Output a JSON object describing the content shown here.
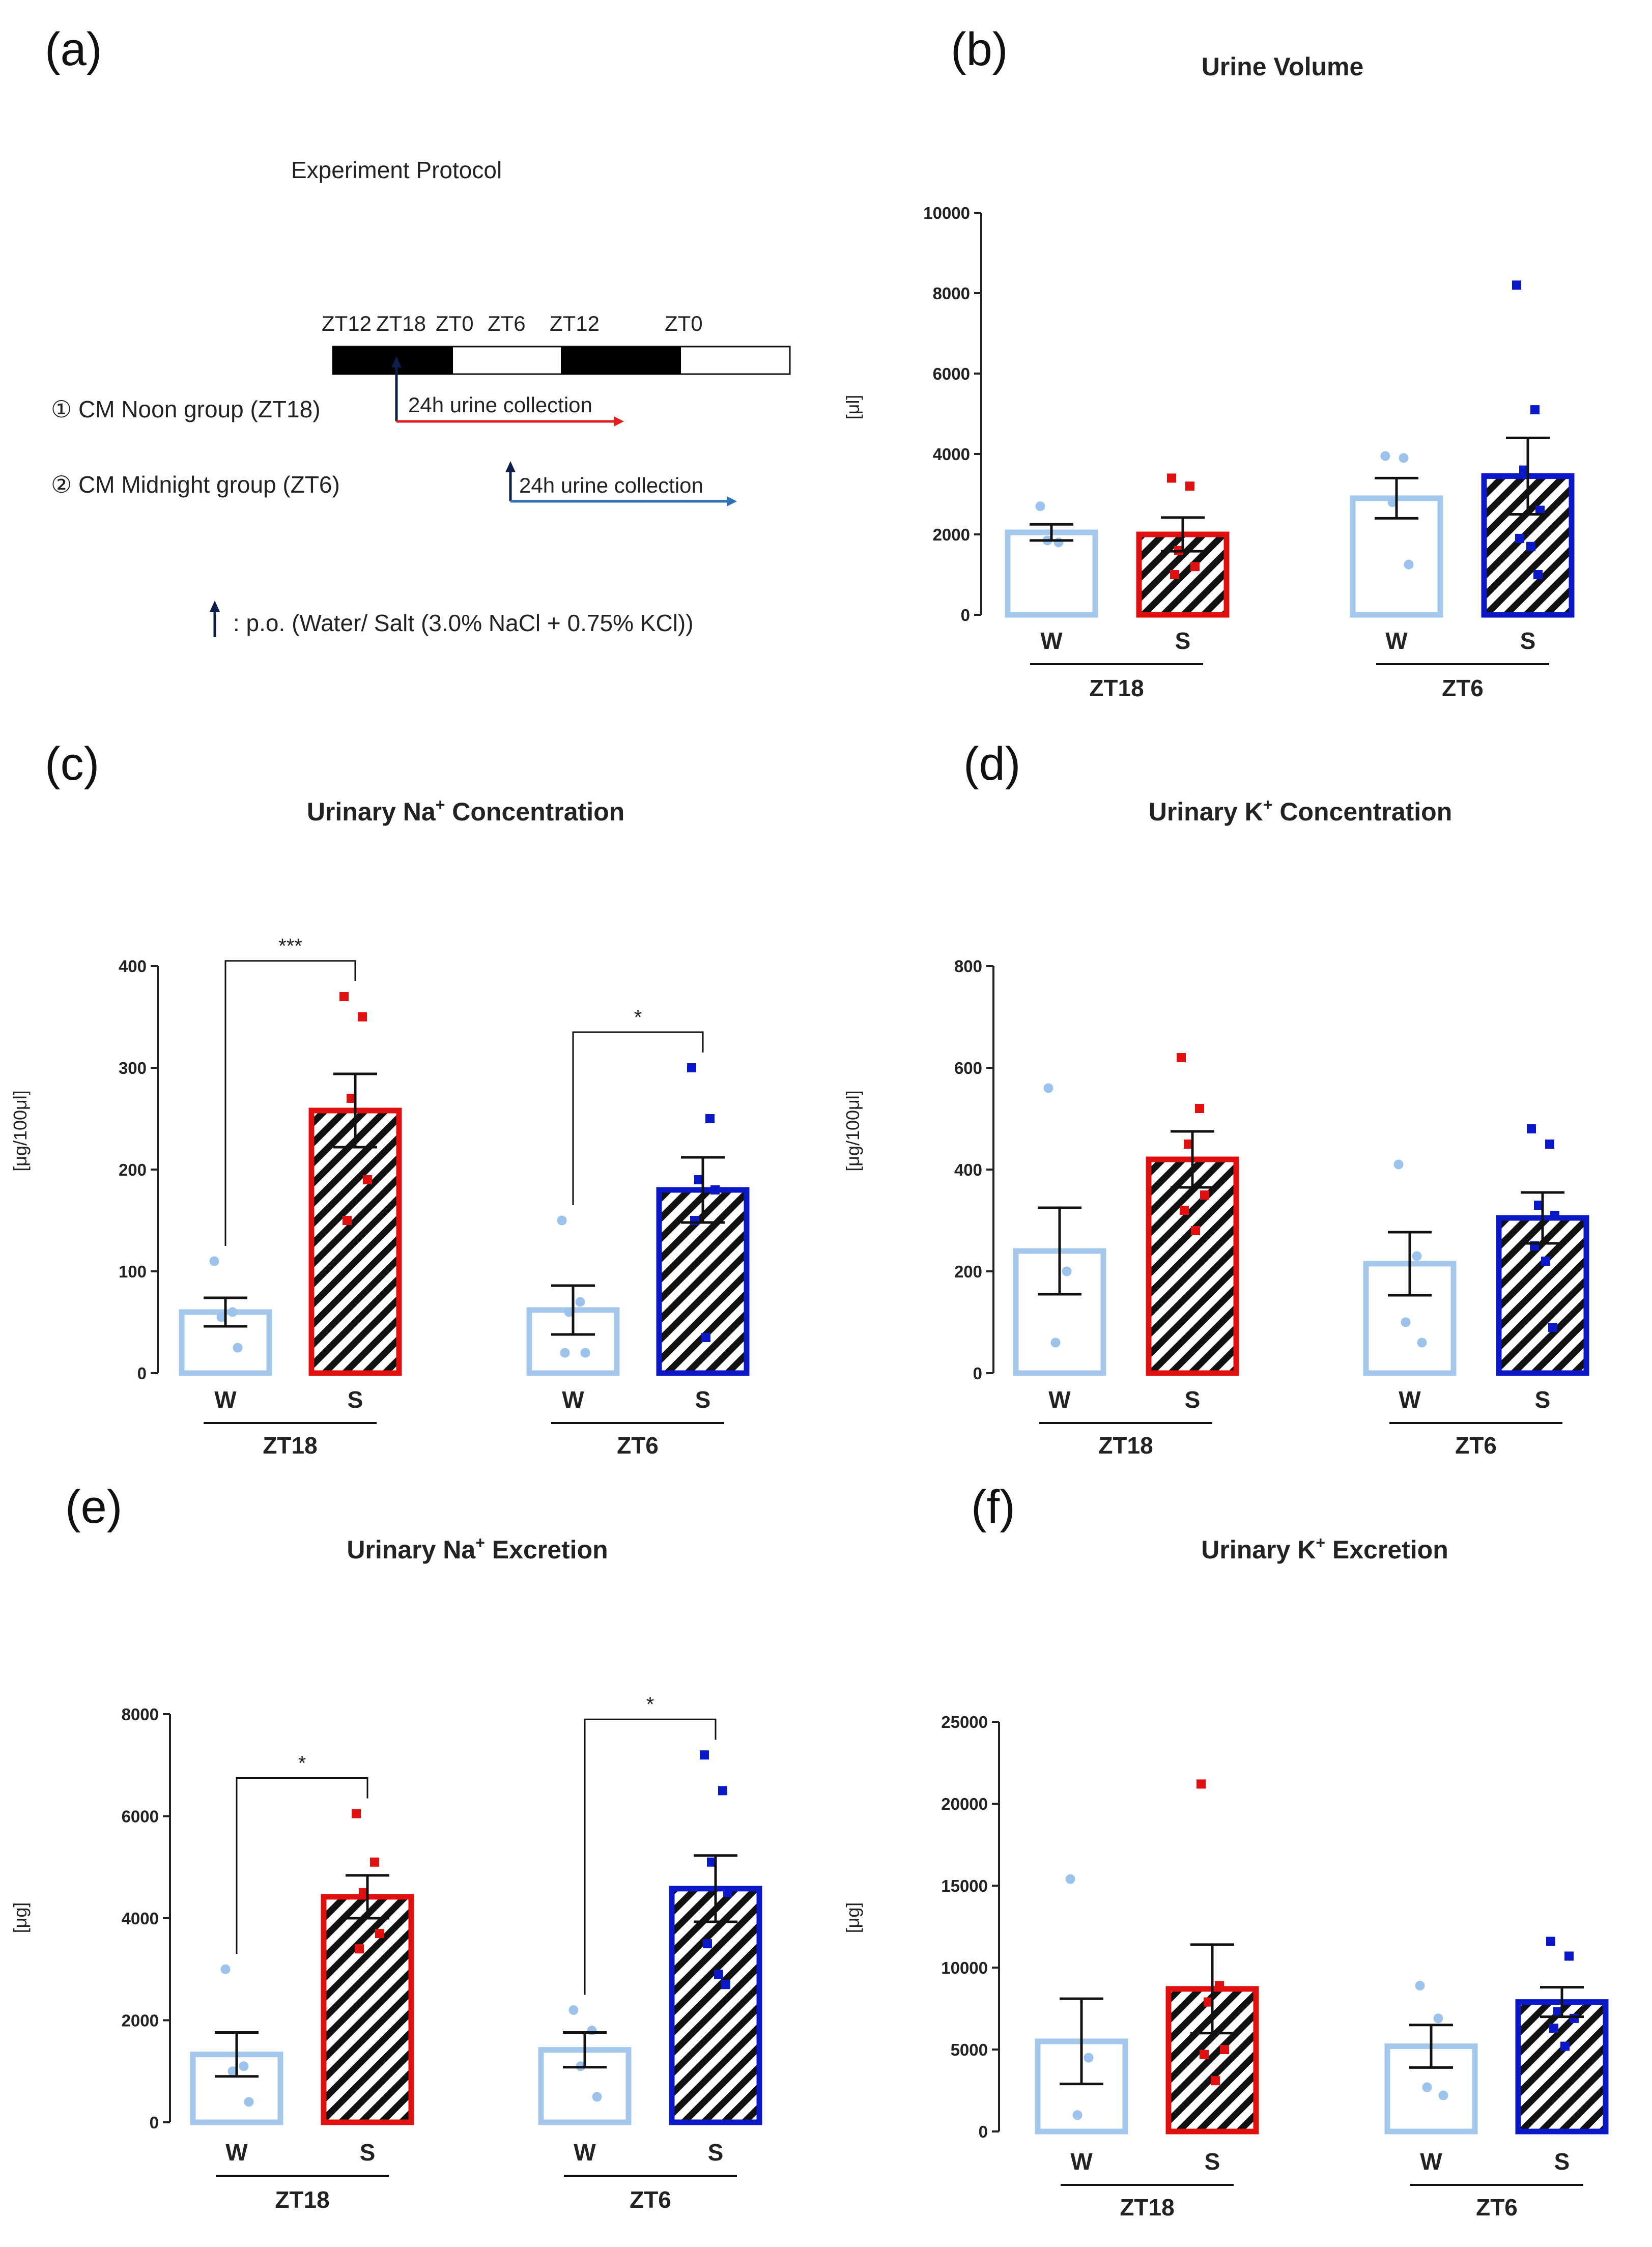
{
  "protocol": {
    "panel_label": "(a)",
    "title": "Experiment Protocol",
    "zt_labels": [
      "ZT12",
      "ZT18",
      "ZT0",
      "ZT6",
      "ZT12",
      "ZT0"
    ],
    "group1": "① CM Noon group (ZT18)",
    "group2": "② CM Midnight group (ZT6)",
    "collection1": "24h  urine collection",
    "collection2": "24h  urine collection",
    "legend_text": ": p.o. (Water/ Salt (3.0% NaCl + 0.75% KCl))",
    "colors": {
      "noon_arrow": "#e02020",
      "midnight_arrow": "#2e6fb5",
      "dose_arrow": "#0b1f4a"
    }
  },
  "colors": {
    "water_bar": "#a4c8ec",
    "water_dot": "#9cc3eb",
    "noon_salt": "#e01010",
    "midnight_salt": "#0a18c8",
    "axis": "#222222"
  },
  "chart_data": [
    {
      "id": "b",
      "panel_label": "(b)",
      "type": "bar",
      "title": "Urine Volume",
      "ylabel": "[μl]",
      "ylim": [
        0,
        10000
      ],
      "yticks": [
        0,
        2000,
        4000,
        6000,
        8000,
        10000
      ],
      "ytick_labels": [
        "0",
        "2000",
        "4000",
        "6000",
        "8000",
        "10000"
      ],
      "groups": [
        "ZT18",
        "ZT6"
      ],
      "categories": [
        "W",
        "S",
        "W",
        "S"
      ],
      "series": [
        {
          "name": "ZT18 W",
          "mean": 2050,
          "sem": 200,
          "points": [
            2700,
            1800,
            1850
          ]
        },
        {
          "name": "ZT18 S",
          "mean": 2000,
          "sem": 420,
          "points": [
            3400,
            3200,
            1600,
            1200,
            1000
          ]
        },
        {
          "name": "ZT6 W",
          "mean": 2900,
          "sem": 500,
          "points": [
            3950,
            3900,
            2800,
            1250
          ]
        },
        {
          "name": "ZT6 S",
          "mean": 3450,
          "sem": 950,
          "points": [
            8200,
            5100,
            3600,
            2600,
            1900,
            1700,
            1000
          ]
        }
      ],
      "significance": []
    },
    {
      "id": "c",
      "panel_label": "(c)",
      "type": "bar",
      "title": "Urinary Na",
      "title_sup": "+",
      "title_tail": " Concentration",
      "ylabel": "[μg/100μl]",
      "ylim": [
        0,
        400
      ],
      "yticks": [
        0,
        100,
        200,
        300,
        400
      ],
      "ytick_labels": [
        "0",
        "100",
        "200",
        "300",
        "400"
      ],
      "groups": [
        "ZT18",
        "ZT6"
      ],
      "categories": [
        "W",
        "S",
        "W",
        "S"
      ],
      "series": [
        {
          "name": "ZT18 W",
          "mean": 60,
          "sem": 14,
          "points": [
            110,
            60,
            55,
            25
          ]
        },
        {
          "name": "ZT18 S",
          "mean": 258,
          "sem": 36,
          "points": [
            370,
            350,
            270,
            190,
            150
          ]
        },
        {
          "name": "ZT6 W",
          "mean": 62,
          "sem": 24,
          "points": [
            150,
            70,
            60,
            20,
            20
          ]
        },
        {
          "name": "ZT6 S",
          "mean": 180,
          "sem": 32,
          "points": [
            300,
            250,
            190,
            180,
            150,
            35
          ]
        }
      ],
      "significance": [
        {
          "label": "***",
          "from": 0,
          "to": 1
        },
        {
          "label": "*",
          "from": 2,
          "to": 3
        }
      ]
    },
    {
      "id": "d",
      "panel_label": "(d)",
      "type": "bar",
      "title": "Urinary K",
      "title_sup": "+",
      "title_tail": " Concentration",
      "ylabel": "[μg/100μl]",
      "ylim": [
        0,
        800
      ],
      "yticks": [
        0,
        200,
        400,
        600,
        800
      ],
      "ytick_labels": [
        "0",
        "200",
        "400",
        "600",
        "800"
      ],
      "groups": [
        "ZT18",
        "ZT6"
      ],
      "categories": [
        "W",
        "S",
        "W",
        "S"
      ],
      "series": [
        {
          "name": "ZT18 W",
          "mean": 240,
          "sem": 85,
          "points": [
            560,
            200,
            60
          ]
        },
        {
          "name": "ZT18 S",
          "mean": 420,
          "sem": 55,
          "points": [
            620,
            520,
            450,
            350,
            320,
            280
          ]
        },
        {
          "name": "ZT6 W",
          "mean": 215,
          "sem": 62,
          "points": [
            410,
            230,
            100,
            60
          ]
        },
        {
          "name": "ZT6 S",
          "mean": 305,
          "sem": 50,
          "points": [
            480,
            450,
            330,
            310,
            250,
            220,
            90
          ]
        }
      ],
      "significance": []
    },
    {
      "id": "e",
      "panel_label": "(e)",
      "type": "bar",
      "title": "Urinary Na",
      "title_sup": "+",
      "title_tail": " Excretion",
      "ylabel": "[μg]",
      "ylim": [
        0,
        8000
      ],
      "yticks": [
        0,
        2000,
        4000,
        6000,
        8000
      ],
      "ytick_labels": [
        "0",
        "2000",
        "4000",
        "6000",
        "8000"
      ],
      "groups": [
        "ZT18",
        "ZT6"
      ],
      "categories": [
        "W",
        "S",
        "W",
        "S"
      ],
      "series": [
        {
          "name": "ZT18 W",
          "mean": 1330,
          "sem": 430,
          "points": [
            3000,
            1100,
            1000,
            400
          ]
        },
        {
          "name": "ZT18 S",
          "mean": 4420,
          "sem": 420,
          "points": [
            6050,
            5100,
            4500,
            3700,
            3400
          ]
        },
        {
          "name": "ZT6 W",
          "mean": 1420,
          "sem": 340,
          "points": [
            2200,
            1800,
            1100,
            500
          ]
        },
        {
          "name": "ZT6 S",
          "mean": 4580,
          "sem": 650,
          "points": [
            7200,
            6500,
            5100,
            4500,
            3500,
            2900,
            2700
          ]
        }
      ],
      "significance": [
        {
          "label": "*",
          "from": 0,
          "to": 1
        },
        {
          "label": "*",
          "from": 2,
          "to": 3
        }
      ]
    },
    {
      "id": "f",
      "panel_label": "(f)",
      "type": "bar",
      "title": "Urinary K",
      "title_sup": "+",
      "title_tail": " Excretion",
      "ylabel": "[μg]",
      "ylim": [
        0,
        25000
      ],
      "yticks": [
        0,
        5000,
        10000,
        15000,
        20000,
        25000
      ],
      "ytick_labels": [
        "0",
        "5000",
        "10000",
        "15000",
        "20000",
        "25000"
      ],
      "groups": [
        "ZT18",
        "ZT6"
      ],
      "categories": [
        "W",
        "S",
        "W",
        "S"
      ],
      "series": [
        {
          "name": "ZT18 W",
          "mean": 5500,
          "sem": 2600,
          "points": [
            15400,
            4500,
            1000
          ]
        },
        {
          "name": "ZT18 S",
          "mean": 8700,
          "sem": 2700,
          "points": [
            21200,
            8900,
            7900,
            5000,
            4700,
            3100
          ]
        },
        {
          "name": "ZT6 W",
          "mean": 5200,
          "sem": 1300,
          "points": [
            8900,
            6900,
            2700,
            2200
          ]
        },
        {
          "name": "ZT6 S",
          "mean": 7900,
          "sem": 900,
          "points": [
            11600,
            10700,
            7300,
            6900,
            6300,
            5200
          ]
        }
      ],
      "significance": []
    }
  ]
}
